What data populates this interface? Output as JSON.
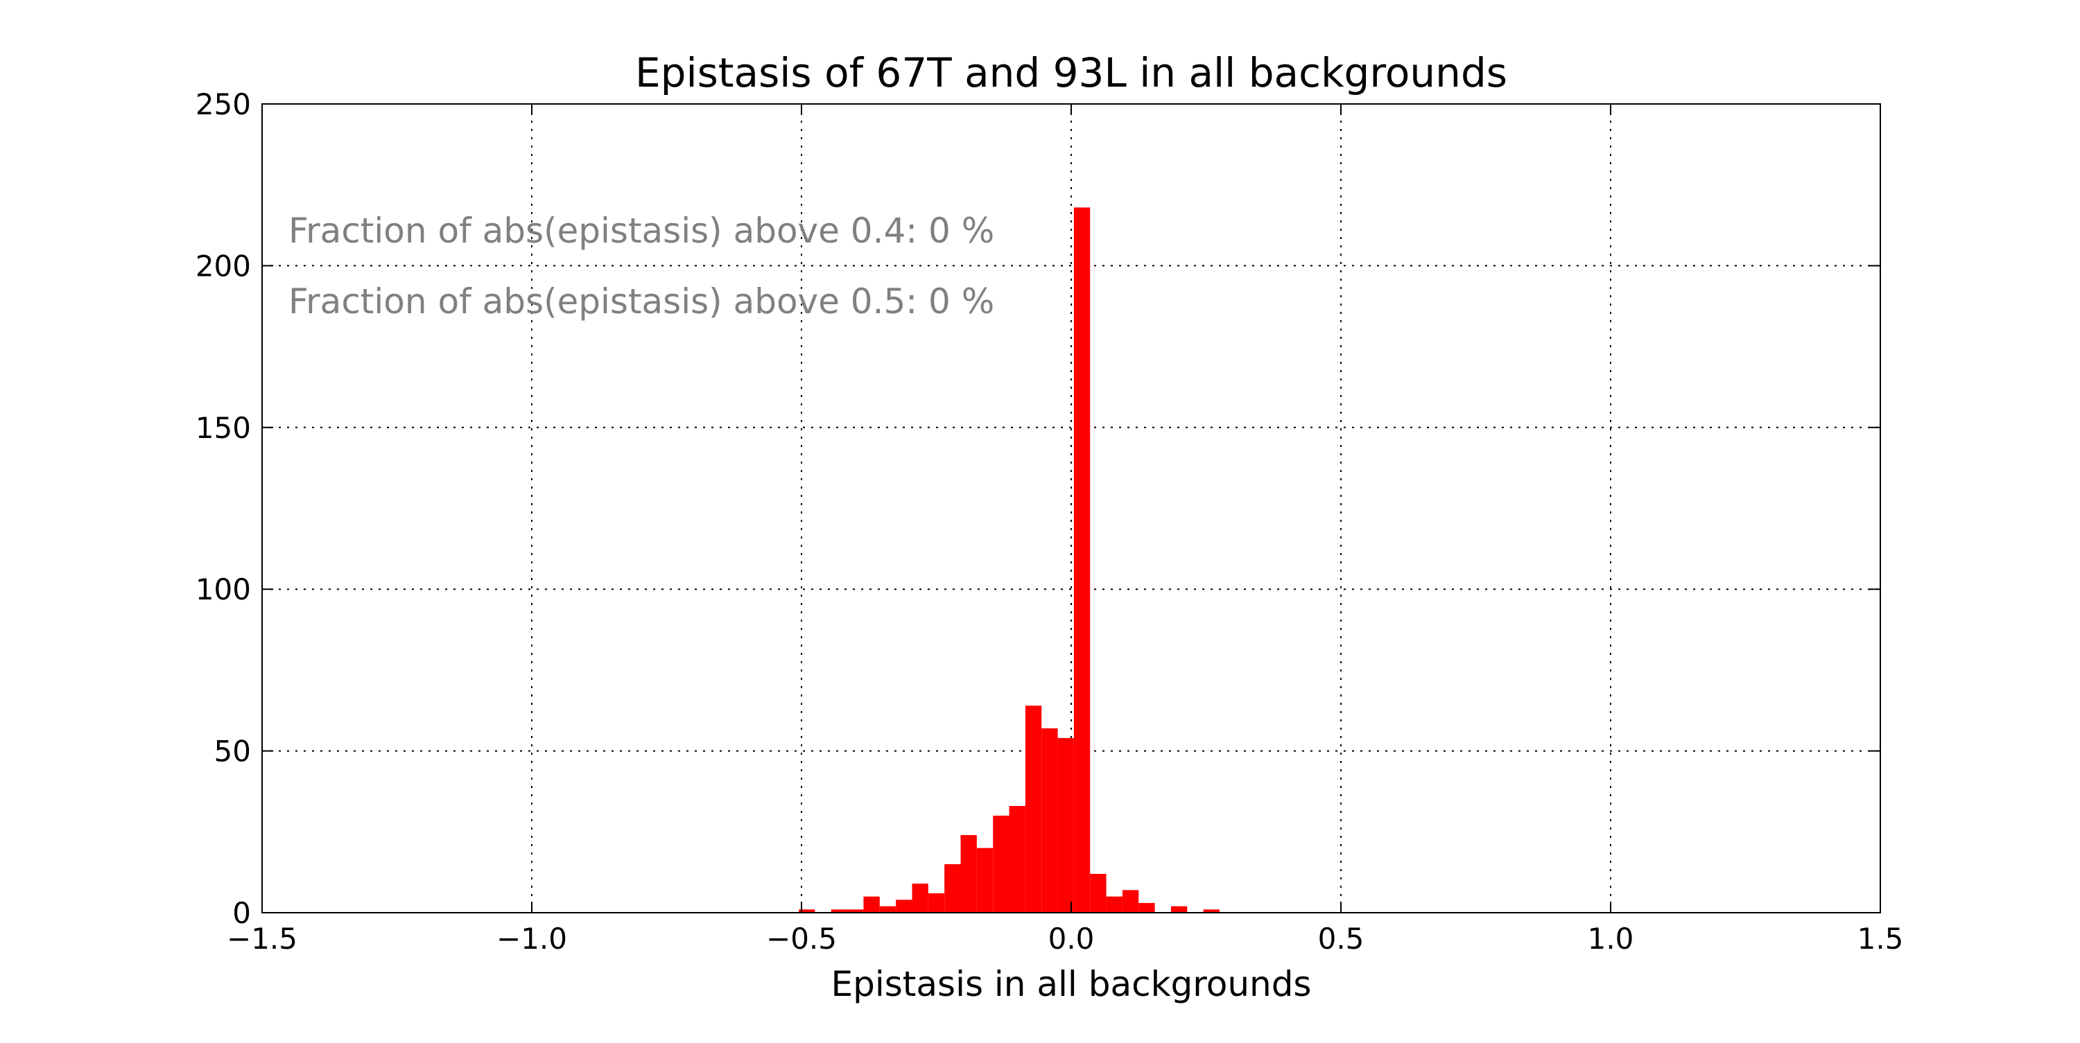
{
  "chart_data": {
    "type": "bar",
    "title": "Epistasis of 67T and 93L in all backgrounds",
    "xlabel": "Epistasis in all backgrounds",
    "ylabel": "",
    "xlim": [
      -1.5,
      1.5
    ],
    "ylim": [
      0,
      250
    ],
    "x_ticks": [
      -1.5,
      -1.0,
      -0.5,
      0.0,
      0.5,
      1.0,
      1.5
    ],
    "x_tick_labels": [
      "−1.5",
      "−1.0",
      "−0.5",
      "0.0",
      "0.5",
      "1.0",
      "1.5"
    ],
    "y_ticks": [
      0,
      50,
      100,
      150,
      200,
      250
    ],
    "y_tick_labels": [
      "0",
      "50",
      "100",
      "150",
      "200",
      "250"
    ],
    "grid": true,
    "grid_style": "dotted",
    "bar_color": "#ff0000",
    "annotation_color": "#808080",
    "annotations": [
      "Fraction of abs(epistasis) above 0.4: 0 %",
      "Fraction of abs(epistasis) above 0.5: 0 %"
    ],
    "bins": [
      {
        "x0": -0.505,
        "x1": -0.475,
        "count": 1
      },
      {
        "x0": -0.445,
        "x1": -0.415,
        "count": 1
      },
      {
        "x0": -0.415,
        "x1": -0.385,
        "count": 1
      },
      {
        "x0": -0.385,
        "x1": -0.355,
        "count": 5
      },
      {
        "x0": -0.355,
        "x1": -0.325,
        "count": 2
      },
      {
        "x0": -0.325,
        "x1": -0.295,
        "count": 4
      },
      {
        "x0": -0.295,
        "x1": -0.265,
        "count": 9
      },
      {
        "x0": -0.265,
        "x1": -0.235,
        "count": 6
      },
      {
        "x0": -0.235,
        "x1": -0.205,
        "count": 15
      },
      {
        "x0": -0.205,
        "x1": -0.175,
        "count": 24
      },
      {
        "x0": -0.175,
        "x1": -0.145,
        "count": 20
      },
      {
        "x0": -0.145,
        "x1": -0.115,
        "count": 30
      },
      {
        "x0": -0.115,
        "x1": -0.085,
        "count": 33
      },
      {
        "x0": -0.085,
        "x1": -0.055,
        "count": 64
      },
      {
        "x0": -0.055,
        "x1": -0.025,
        "count": 57
      },
      {
        "x0": -0.025,
        "x1": 0.005,
        "count": 54
      },
      {
        "x0": 0.005,
        "x1": 0.035,
        "count": 218
      },
      {
        "x0": 0.035,
        "x1": 0.065,
        "count": 12
      },
      {
        "x0": 0.065,
        "x1": 0.095,
        "count": 5
      },
      {
        "x0": 0.095,
        "x1": 0.125,
        "count": 7
      },
      {
        "x0": 0.125,
        "x1": 0.155,
        "count": 3
      },
      {
        "x0": 0.185,
        "x1": 0.215,
        "count": 2
      },
      {
        "x0": 0.245,
        "x1": 0.275,
        "count": 1
      }
    ]
  }
}
